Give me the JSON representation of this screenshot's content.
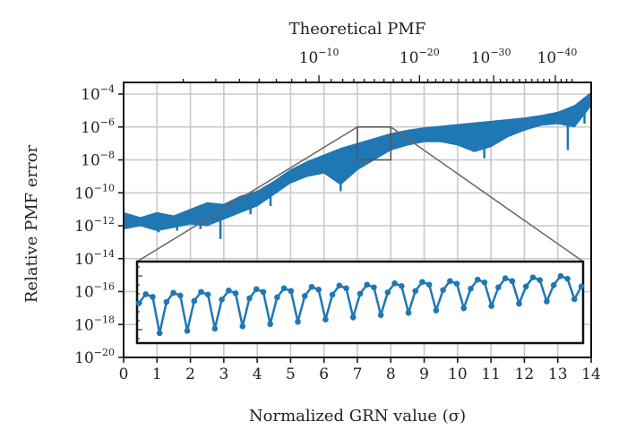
{
  "chart_data": {
    "type": "area",
    "title": "",
    "xlabel": "Normalized GRN value (σ)",
    "ylabel": "Relative PMF error",
    "top_xlabel": "Theoretical PMF",
    "xlim": [
      0,
      14
    ],
    "ylim_log10": [
      -20,
      -3.7
    ],
    "yscale": "log",
    "grid": true,
    "color": "#1f77b4",
    "x_ticks": [
      "0",
      "1",
      "2",
      "3",
      "4",
      "5",
      "6",
      "7",
      "8",
      "9",
      "10",
      "11",
      "12",
      "13",
      "14"
    ],
    "y_ticks": [
      {
        "base": "10",
        "exp": "−4",
        "value": -4
      },
      {
        "base": "10",
        "exp": "−6",
        "value": -6
      },
      {
        "base": "10",
        "exp": "−8",
        "value": -8
      },
      {
        "base": "10",
        "exp": "−10",
        "value": -10
      },
      {
        "base": "10",
        "exp": "−12",
        "value": -12
      },
      {
        "base": "10",
        "exp": "−14",
        "value": -14
      },
      {
        "base": "10",
        "exp": "−16",
        "value": -16
      },
      {
        "base": "10",
        "exp": "−18",
        "value": -18
      },
      {
        "base": "10",
        "exp": "−20",
        "value": -20
      }
    ],
    "top_ticks": [
      {
        "base": "10",
        "exp": "−10",
        "at_x": 5.85
      },
      {
        "base": "10",
        "exp": "−20",
        "at_x": 8.86
      },
      {
        "base": "10",
        "exp": "−30",
        "at_x": 11.0
      },
      {
        "base": "10",
        "exp": "−40",
        "at_x": 12.98
      }
    ],
    "band": {
      "x": [
        0,
        0.5,
        1,
        1.5,
        2,
        2.5,
        3,
        3.5,
        4,
        4.5,
        5,
        5.5,
        6,
        6.5,
        7,
        7.5,
        8,
        8.5,
        9,
        9.5,
        10,
        10.5,
        11,
        11.5,
        12,
        12.5,
        13,
        13.5,
        14
      ],
      "upper_log10": [
        -11.2,
        -11.5,
        -11.2,
        -11.4,
        -11.0,
        -10.6,
        -10.7,
        -10.2,
        -9.9,
        -9.3,
        -8.6,
        -8.1,
        -7.7,
        -7.3,
        -7.0,
        -6.7,
        -6.4,
        -6.2,
        -6.05,
        -5.95,
        -5.85,
        -5.75,
        -5.65,
        -5.55,
        -5.45,
        -5.3,
        -5.1,
        -4.7,
        -3.9
      ],
      "lower_log10": [
        -12.2,
        -12.0,
        -12.3,
        -12.1,
        -11.9,
        -12.0,
        -11.6,
        -11.2,
        -10.8,
        -10.1,
        -9.4,
        -9.0,
        -8.8,
        -9.5,
        -8.6,
        -8.0,
        -7.4,
        -7.1,
        -6.9,
        -6.9,
        -7.1,
        -7.5,
        -7.2,
        -6.6,
        -6.2,
        -5.9,
        -5.8,
        -6.0,
        -4.7
      ]
    },
    "spikes": [
      {
        "x": 1.05,
        "log10": -12.4
      },
      {
        "x": 1.6,
        "log10": -12.3
      },
      {
        "x": 2.3,
        "log10": -12.2
      },
      {
        "x": 2.9,
        "log10": -12.8
      },
      {
        "x": 3.8,
        "log10": -11.3
      },
      {
        "x": 4.4,
        "log10": -10.8
      },
      {
        "x": 6.5,
        "log10": -9.9
      },
      {
        "x": 10.8,
        "log10": -7.9
      },
      {
        "x": 13.3,
        "log10": -7.4
      },
      {
        "x": 13.8,
        "log10": -5.8
      }
    ],
    "zoom_region": {
      "xlim": [
        7,
        8
      ],
      "ylim_log10": [
        -8,
        -6
      ]
    },
    "inset": {
      "xlim": [
        7,
        8
      ],
      "ylim_log10": [
        -7.8,
        -6.0
      ],
      "values_log10": [
        -6.92,
        -6.72,
        -6.78,
        -7.58,
        -6.89,
        -6.69,
        -6.75,
        -7.53,
        -6.87,
        -6.67,
        -6.73,
        -7.48,
        -6.84,
        -6.64,
        -6.7,
        -7.43,
        -6.81,
        -6.61,
        -6.67,
        -7.38,
        -6.79,
        -6.59,
        -6.65,
        -7.33,
        -6.76,
        -6.56,
        -6.62,
        -7.28,
        -6.73,
        -6.53,
        -6.59,
        -7.23,
        -6.71,
        -6.51,
        -6.57,
        -7.18,
        -6.68,
        -6.48,
        -6.54,
        -7.13,
        -6.65,
        -6.45,
        -6.51,
        -7.08,
        -6.63,
        -6.43,
        -6.49,
        -7.03,
        -6.6,
        -6.4,
        -6.46,
        -6.98,
        -6.57,
        -6.37,
        -6.43,
        -6.93,
        -6.55,
        -6.35,
        -6.41,
        -6.88,
        -6.52,
        -6.32,
        -6.38,
        -6.83,
        -6.55
      ]
    }
  }
}
